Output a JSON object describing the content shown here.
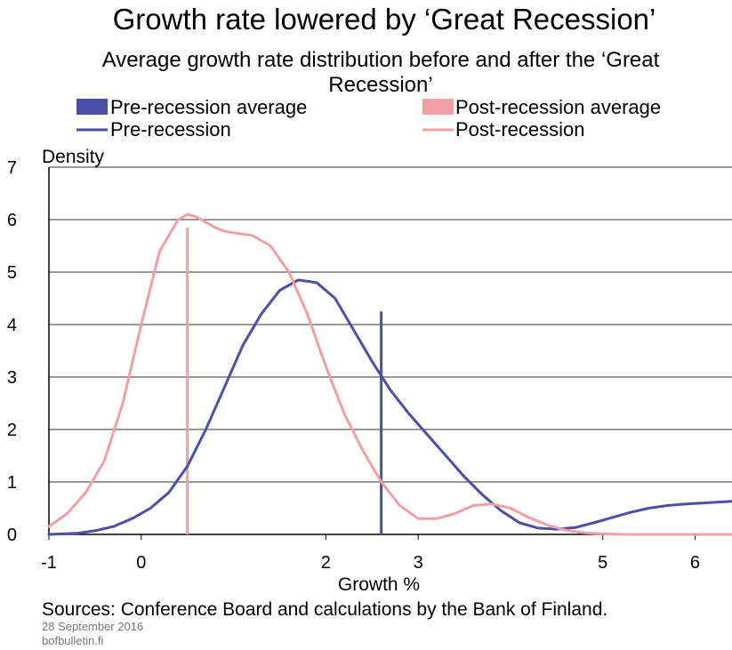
{
  "chart_data": {
    "type": "line",
    "title": "Growth rate lowered by ‘Great Recession’",
    "subtitle_line1": "Average growth rate distribution before and after the ‘Great",
    "subtitle_line2": "Recession’",
    "ylabel": "Density",
    "xlabel": "Growth %",
    "xlim": [
      -1,
      6.4
    ],
    "ylim": [
      0,
      7
    ],
    "x_ticks": [
      -1,
      0,
      2,
      3,
      5,
      6
    ],
    "x_tick_labels": [
      "-1",
      "0",
      "2",
      "3",
      "5",
      "6"
    ],
    "y_ticks": [
      0,
      1,
      2,
      3,
      4,
      5,
      6,
      7
    ],
    "y_tick_labels": [
      "0",
      "1",
      "2",
      "3",
      "4",
      "5",
      "6",
      "7"
    ],
    "grid": "horizontal",
    "legend": [
      {
        "label": "Pre-recession average",
        "kind": "bar"
      },
      {
        "label": "Post-recession average",
        "kind": "bar"
      },
      {
        "label": "Pre-recession",
        "kind": "line"
      },
      {
        "label": "Post-recession",
        "kind": "line"
      }
    ],
    "series": [
      {
        "name": "Pre-recession",
        "color": "#4b4fa6",
        "x": [
          -1.0,
          -0.7,
          -0.5,
          -0.3,
          -0.1,
          0.1,
          0.3,
          0.5,
          0.7,
          0.9,
          1.1,
          1.3,
          1.5,
          1.7,
          1.9,
          2.1,
          2.3,
          2.5,
          2.7,
          2.9,
          3.1,
          3.3,
          3.5,
          3.7,
          3.9,
          4.1,
          4.3,
          4.5,
          4.7,
          4.9,
          5.1,
          5.3,
          5.5,
          5.7,
          5.9,
          6.1,
          6.3,
          6.4
        ],
        "y": [
          0.0,
          0.02,
          0.07,
          0.15,
          0.3,
          0.5,
          0.8,
          1.3,
          2.0,
          2.8,
          3.6,
          4.2,
          4.65,
          4.85,
          4.8,
          4.5,
          3.9,
          3.3,
          2.75,
          2.3,
          1.9,
          1.5,
          1.1,
          0.75,
          0.45,
          0.22,
          0.12,
          0.1,
          0.13,
          0.22,
          0.32,
          0.42,
          0.5,
          0.55,
          0.58,
          0.6,
          0.62,
          0.63
        ]
      },
      {
        "name": "Post-recession",
        "color": "#f0a0a3",
        "x": [
          -1.0,
          -0.8,
          -0.6,
          -0.4,
          -0.2,
          0.0,
          0.2,
          0.4,
          0.5,
          0.6,
          0.7,
          0.8,
          0.9,
          1.0,
          1.2,
          1.4,
          1.6,
          1.8,
          2.0,
          2.2,
          2.4,
          2.6,
          2.8,
          3.0,
          3.2,
          3.4,
          3.6,
          3.8,
          4.0,
          4.2,
          4.4,
          4.6,
          4.8,
          5.0,
          5.2,
          5.4,
          6.4
        ],
        "y": [
          0.15,
          0.4,
          0.8,
          1.4,
          2.5,
          4.0,
          5.4,
          6.0,
          6.1,
          6.05,
          5.95,
          5.85,
          5.78,
          5.75,
          5.7,
          5.5,
          5.0,
          4.2,
          3.2,
          2.3,
          1.6,
          1.0,
          0.55,
          0.3,
          0.3,
          0.4,
          0.55,
          0.58,
          0.5,
          0.32,
          0.18,
          0.08,
          0.03,
          0.01,
          0.0,
          0.0,
          0.0
        ]
      }
    ],
    "averages": [
      {
        "name": "Pre-recession average",
        "x": 2.6,
        "y": 4.25,
        "color": "#4b4fa6"
      },
      {
        "name": "Post-recession average",
        "x": 0.5,
        "y": 5.85,
        "color": "#f0a0a3"
      }
    ]
  },
  "footer": {
    "sources": "Sources: Conference Board and calculations by the Bank of Finland.",
    "date": "28 September 2016",
    "site": "bofbulletin.fi"
  }
}
